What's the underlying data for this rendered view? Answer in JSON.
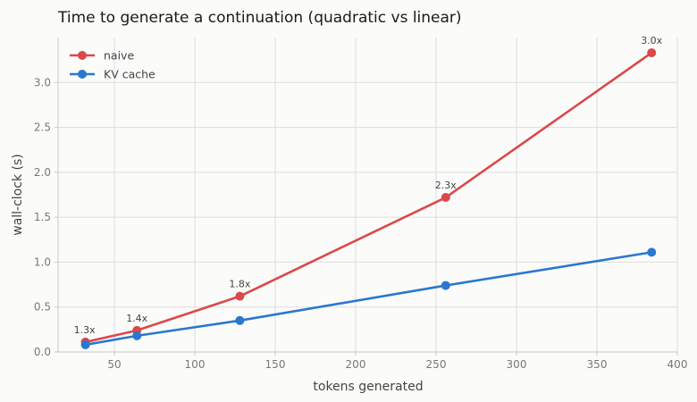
{
  "chart_data": {
    "type": "line",
    "title": "Time to generate a continuation (quadratic vs linear)",
    "xlabel": "tokens generated",
    "ylabel": "wall-clock (s)",
    "xlim": [
      15,
      400
    ],
    "ylim": [
      0,
      3.5
    ],
    "xticks": [
      50,
      100,
      150,
      200,
      250,
      300,
      350,
      400
    ],
    "yticks": [
      0.0,
      0.5,
      1.0,
      1.5,
      2.0,
      2.5,
      3.0
    ],
    "grid": true,
    "legend_position": "top-left",
    "x": [
      32,
      64,
      128,
      256,
      384
    ],
    "series": [
      {
        "name": "naive",
        "color": "#db4848",
        "values": [
          0.11,
          0.24,
          0.62,
          1.72,
          3.33
        ]
      },
      {
        "name": "KV cache",
        "color": "#2a77cf",
        "values": [
          0.08,
          0.18,
          0.35,
          0.74,
          1.11
        ]
      }
    ],
    "annotations": [
      "1.3x",
      "1.4x",
      "1.8x",
      "2.3x",
      "3.0x"
    ]
  }
}
